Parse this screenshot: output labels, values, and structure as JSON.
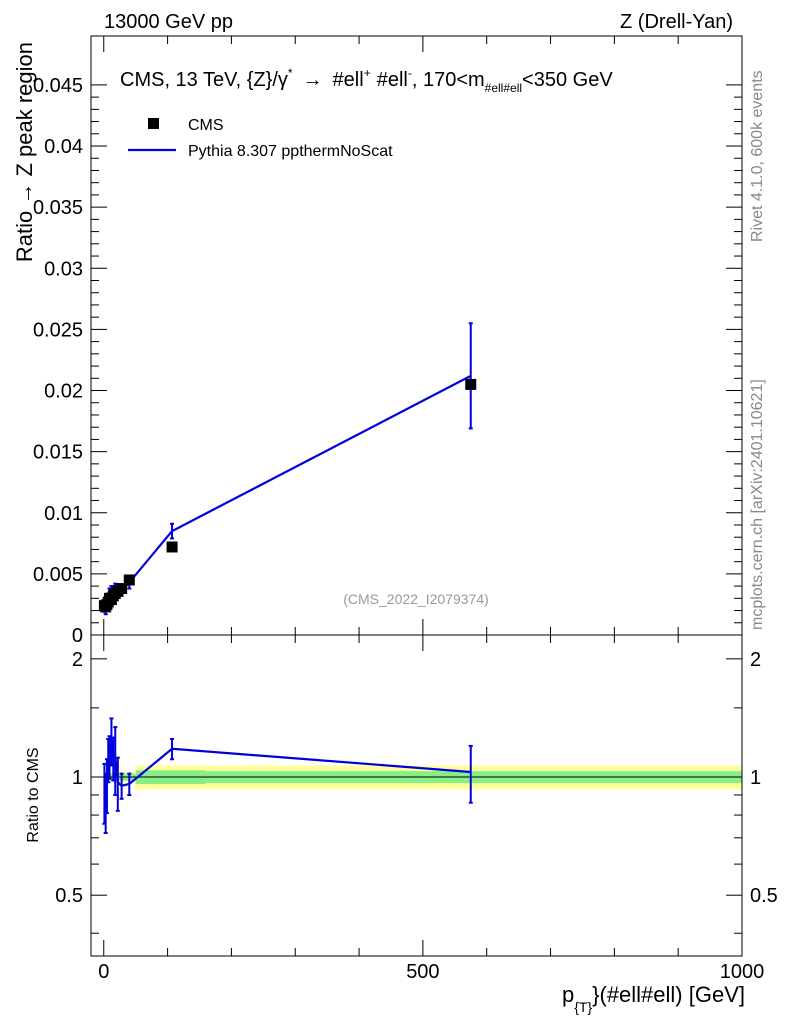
{
  "header": {
    "left": "13000 GeV pp",
    "right": "Z (Drell-Yan)"
  },
  "side": {
    "rivet": "Rivet 4.1.0,  600k events",
    "mcplots": "mcplots.cern.ch [arXiv:2401.10621]"
  },
  "plot": {
    "title_main": "CMS, 13 TeV, {Z}/γ",
    "title_star": "*",
    "title_arrow": "→",
    "title_l1": "#ell",
    "title_plus": "+",
    "title_l2": "#ell",
    "title_minus": "-",
    "title_range_a": ", 170<m",
    "title_range_sub": "#ell#ell",
    "title_range_b": "<350 GeV",
    "ylabel": "Ratio → Z peak region",
    "watermark": "(CMS_2022_I2079374)",
    "ratio_ylabel": "Ratio to CMS",
    "xlabel_a": "p",
    "xlabel_sub": "{T}",
    "xlabel_b": "}(#ell#ell) [GeV]"
  },
  "legend": {
    "data_label": "CMS",
    "mc_label": "Pythia 8.307 ppthermNoScat"
  },
  "colors": {
    "mc": "#0000dd",
    "data": "#000000",
    "band_inner": "#88ee88",
    "band_outer": "#ffff99"
  },
  "chart_data": [
    {
      "type": "scatter",
      "title": "CMS, 13 TeV, {Z}/γ* → #ell+ #ell-, 170<m#ell#ell<350 GeV",
      "xlabel": "p{T}(#ell#ell) [GeV]",
      "ylabel": "Ratio → Z peak region",
      "xlim": [
        -20,
        1000
      ],
      "ylim": [
        0,
        0.049
      ],
      "x_ticks": [
        0,
        500,
        1000
      ],
      "y_ticks": [
        0,
        0.005,
        0.01,
        0.015,
        0.02,
        0.025,
        0.03,
        0.035,
        0.04,
        0.045
      ],
      "y_tick_labels": [
        "0",
        "0.005",
        "0.01",
        "0.015",
        "0.02",
        "0.025",
        "0.03",
        "0.035",
        "0.04",
        "0.045"
      ],
      "series": [
        {
          "name": "CMS",
          "x": [
            1,
            3,
            5,
            7,
            9,
            12,
            15,
            18,
            22,
            28,
            40,
            107,
            575
          ],
          "values": [
            0.0024,
            0.0023,
            0.0025,
            0.0027,
            0.003,
            0.0029,
            0.0032,
            0.0034,
            0.0036,
            0.0038,
            0.0045,
            0.0072,
            0.0205
          ]
        },
        {
          "name": "Pythia 8.307 ppthermNoScat",
          "x": [
            1,
            3,
            5,
            7,
            9,
            12,
            15,
            18,
            22,
            28,
            40,
            107,
            575
          ],
          "values": [
            0.0022,
            0.002,
            0.0024,
            0.003,
            0.0034,
            0.0036,
            0.0036,
            0.0038,
            0.0035,
            0.0036,
            0.0043,
            0.0085,
            0.0212
          ],
          "errors": [
            0.0003,
            0.0003,
            0.0003,
            0.0004,
            0.0004,
            0.0004,
            0.0004,
            0.0004,
            0.0004,
            0.0004,
            0.0005,
            0.0006,
            0.0043
          ]
        }
      ]
    },
    {
      "type": "line",
      "title": "Ratio to CMS",
      "xlim": [
        -20,
        1000
      ],
      "ylim": [
        0.35,
        2.3
      ],
      "y_ticks": [
        0.5,
        1,
        2
      ],
      "y_tick_labels": [
        "0.5",
        "1",
        "2"
      ],
      "x_ticks": [
        0,
        500,
        1000
      ],
      "x_tick_labels": [
        "0",
        "500",
        "1000"
      ],
      "bands": [
        {
          "x0": 0,
          "x1": 50,
          "lo_outer": 0.97,
          "hi_outer": 1.03,
          "lo_inner": 0.98,
          "hi_inner": 1.02
        },
        {
          "x0": 50,
          "x1": 160,
          "lo_outer": 0.93,
          "hi_outer": 1.07,
          "lo_inner": 0.96,
          "hi_inner": 1.04
        },
        {
          "x0": 160,
          "x1": 1000,
          "lo_outer": 0.93,
          "hi_outer": 1.07,
          "lo_inner": 0.965,
          "hi_inner": 1.035
        }
      ],
      "series": [
        {
          "name": "Pythia 8.307 ppthermNoScat / CMS",
          "x": [
            1,
            3,
            5,
            7,
            9,
            12,
            15,
            18,
            22,
            28,
            40,
            107,
            575
          ],
          "values": [
            0.92,
            0.87,
            0.96,
            1.11,
            1.13,
            1.24,
            1.12,
            1.12,
            0.97,
            0.95,
            0.96,
            1.18,
            1.03
          ],
          "errors": [
            0.16,
            0.15,
            0.15,
            0.14,
            0.14,
            0.17,
            0.14,
            0.22,
            0.15,
            0.07,
            0.06,
            0.07,
            0.17
          ]
        }
      ]
    }
  ]
}
